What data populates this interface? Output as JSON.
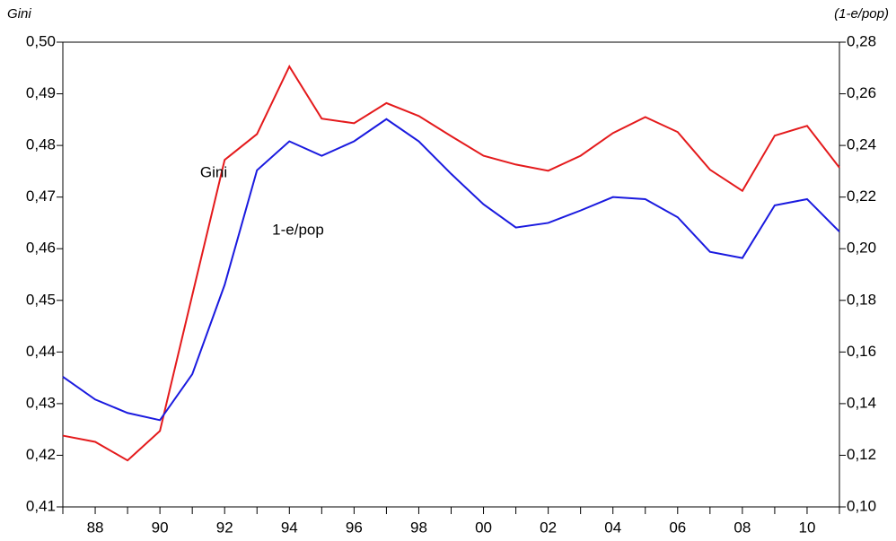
{
  "chart_data": {
    "type": "line",
    "y_title": "Gini",
    "y2_title": "(1-e/pop)",
    "categories": [
      null,
      "88",
      null,
      "90",
      null,
      "92",
      null,
      "94",
      null,
      "96",
      null,
      "98",
      null,
      "00",
      null,
      "02",
      null,
      "04",
      null,
      "06",
      null,
      "08",
      null,
      "10",
      null
    ],
    "ylim": [
      0.41,
      0.5
    ],
    "yticks": [
      {
        "value": 0.41,
        "label": "0,41"
      },
      {
        "value": 0.42,
        "label": "0,42"
      },
      {
        "value": 0.43,
        "label": "0,43"
      },
      {
        "value": 0.44,
        "label": "0,44"
      },
      {
        "value": 0.45,
        "label": "0,45"
      },
      {
        "value": 0.46,
        "label": "0,46"
      },
      {
        "value": 0.47,
        "label": "0,47"
      },
      {
        "value": 0.48,
        "label": "0,48"
      },
      {
        "value": 0.49,
        "label": "0,49"
      },
      {
        "value": 0.5,
        "label": "0,50"
      }
    ],
    "y2lim": [
      0.1,
      0.28
    ],
    "y2ticks": [
      {
        "value": 0.1,
        "label": "0,10"
      },
      {
        "value": 0.12,
        "label": "0,12"
      },
      {
        "value": 0.14,
        "label": "0,14"
      },
      {
        "value": 0.16,
        "label": "0,16"
      },
      {
        "value": 0.18,
        "label": "0,18"
      },
      {
        "value": 0.2,
        "label": "0,20"
      },
      {
        "value": 0.22,
        "label": "0,22"
      },
      {
        "value": 0.24,
        "label": "0,24"
      },
      {
        "value": 0.26,
        "label": "0,26"
      },
      {
        "value": 0.28,
        "label": "0,28"
      }
    ],
    "grid": false,
    "series": [
      {
        "name": "Gini",
        "color": "#e41a1c",
        "values": [
          0.4238,
          0.4226,
          0.419,
          0.4247,
          0.451,
          0.4772,
          0.4822,
          0.4953,
          0.4852,
          0.4843,
          0.4882,
          0.4857,
          0.4818,
          0.478,
          0.4763,
          0.4751,
          0.478,
          0.4824,
          0.4855,
          0.4826,
          0.4753,
          0.4712,
          0.4819,
          0.4838,
          0.4757
        ]
      },
      {
        "name": "1-e/pop",
        "color": "#1a1adf",
        "axis": "y2",
        "values": [
          0.1504,
          0.1416,
          0.1364,
          0.1336,
          0.1514,
          0.186,
          0.2304,
          0.2416,
          0.236,
          0.2416,
          0.2502,
          0.2416,
          0.229,
          0.2172,
          0.2082,
          0.21,
          0.2148,
          0.22,
          0.2192,
          0.2122,
          0.1988,
          0.1964,
          0.2168,
          0.2192,
          0.2066
        ]
      }
    ]
  }
}
